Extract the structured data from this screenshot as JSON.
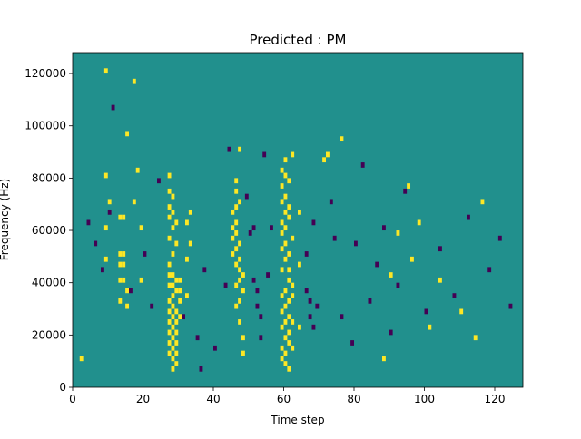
{
  "chart_data": {
    "type": "heatmap",
    "title": "Predicted : PM",
    "xlabel": "Time step",
    "ylabel": "Frequency (Hz)",
    "xlim": [
      0,
      128
    ],
    "ylim": [
      0,
      128000
    ],
    "x_ticks": [
      0,
      20,
      40,
      60,
      80,
      100,
      120
    ],
    "x_tick_labels": [
      "0",
      "20",
      "40",
      "60",
      "80",
      "100",
      "120"
    ],
    "y_ticks": [
      0,
      20000,
      40000,
      60000,
      80000,
      100000,
      120000
    ],
    "y_tick_labels": [
      "0",
      "20000",
      "40000",
      "60000",
      "80000",
      "100000",
      "120000"
    ],
    "grid": false,
    "legend": "none",
    "colormap": "viridis",
    "colors": {
      "background": "#21908d",
      "high": "#fde725",
      "low": "#440154"
    },
    "value_levels": {
      "background": 0,
      "high": 1,
      "low": -1
    },
    "cell_size": {
      "time_steps": 1,
      "frequency_hz": 2000
    },
    "high_cells": [
      [
        2,
        10
      ],
      [
        9,
        120
      ],
      [
        9,
        80
      ],
      [
        9,
        60
      ],
      [
        9,
        48
      ],
      [
        10,
        70
      ],
      [
        13,
        32
      ],
      [
        13,
        40
      ],
      [
        13,
        46
      ],
      [
        13,
        50
      ],
      [
        13,
        64
      ],
      [
        14,
        40
      ],
      [
        14,
        46
      ],
      [
        14,
        50
      ],
      [
        14,
        64
      ],
      [
        15,
        30
      ],
      [
        15,
        36
      ],
      [
        15,
        96
      ],
      [
        17,
        70
      ],
      [
        17,
        116
      ],
      [
        18,
        82
      ],
      [
        19,
        40
      ],
      [
        19,
        60
      ],
      [
        27,
        12
      ],
      [
        27,
        16
      ],
      [
        27,
        20
      ],
      [
        27,
        24
      ],
      [
        27,
        28
      ],
      [
        27,
        32
      ],
      [
        27,
        38
      ],
      [
        27,
        42
      ],
      [
        27,
        46
      ],
      [
        27,
        56
      ],
      [
        27,
        64
      ],
      [
        27,
        68
      ],
      [
        27,
        74
      ],
      [
        27,
        80
      ],
      [
        28,
        6
      ],
      [
        28,
        10
      ],
      [
        28,
        14
      ],
      [
        28,
        18
      ],
      [
        28,
        22
      ],
      [
        28,
        26
      ],
      [
        28,
        30
      ],
      [
        28,
        34
      ],
      [
        28,
        38
      ],
      [
        28,
        42
      ],
      [
        28,
        50
      ],
      [
        28,
        60
      ],
      [
        28,
        66
      ],
      [
        28,
        72
      ],
      [
        29,
        8
      ],
      [
        29,
        12
      ],
      [
        29,
        16
      ],
      [
        29,
        20
      ],
      [
        29,
        24
      ],
      [
        29,
        28
      ],
      [
        29,
        36
      ],
      [
        29,
        40
      ],
      [
        29,
        54
      ],
      [
        29,
        62
      ],
      [
        30,
        26
      ],
      [
        30,
        32
      ],
      [
        30,
        36
      ],
      [
        30,
        40
      ],
      [
        32,
        34
      ],
      [
        32,
        48
      ],
      [
        32,
        62
      ],
      [
        33,
        54
      ],
      [
        33,
        66
      ],
      [
        45,
        50
      ],
      [
        45,
        56
      ],
      [
        45,
        60
      ],
      [
        45,
        66
      ],
      [
        46,
        30
      ],
      [
        46,
        38
      ],
      [
        46,
        46
      ],
      [
        46,
        52
      ],
      [
        46,
        58
      ],
      [
        46,
        62
      ],
      [
        46,
        68
      ],
      [
        46,
        74
      ],
      [
        46,
        78
      ],
      [
        47,
        24
      ],
      [
        47,
        32
      ],
      [
        47,
        40
      ],
      [
        47,
        44
      ],
      [
        47,
        48
      ],
      [
        47,
        54
      ],
      [
        47,
        70
      ],
      [
        47,
        90
      ],
      [
        48,
        12
      ],
      [
        48,
        18
      ],
      [
        48,
        36
      ],
      [
        48,
        42
      ],
      [
        59,
        10
      ],
      [
        59,
        14
      ],
      [
        59,
        22
      ],
      [
        59,
        28
      ],
      [
        59,
        34
      ],
      [
        59,
        44
      ],
      [
        59,
        52
      ],
      [
        59,
        58
      ],
      [
        59,
        62
      ],
      [
        59,
        70
      ],
      [
        59,
        76
      ],
      [
        59,
        82
      ],
      [
        60,
        8
      ],
      [
        60,
        12
      ],
      [
        60,
        18
      ],
      [
        60,
        24
      ],
      [
        60,
        30
      ],
      [
        60,
        36
      ],
      [
        60,
        48
      ],
      [
        60,
        54
      ],
      [
        60,
        60
      ],
      [
        60,
        66
      ],
      [
        60,
        72
      ],
      [
        60,
        80
      ],
      [
        60,
        86
      ],
      [
        61,
        6
      ],
      [
        61,
        16
      ],
      [
        61,
        20
      ],
      [
        61,
        26
      ],
      [
        61,
        32
      ],
      [
        61,
        40
      ],
      [
        61,
        44
      ],
      [
        61,
        50
      ],
      [
        61,
        64
      ],
      [
        61,
        68
      ],
      [
        61,
        78
      ],
      [
        62,
        14
      ],
      [
        62,
        24
      ],
      [
        62,
        34
      ],
      [
        62,
        38
      ],
      [
        62,
        56
      ],
      [
        62,
        88
      ],
      [
        64,
        22
      ],
      [
        64,
        46
      ],
      [
        64,
        66
      ],
      [
        71,
        86
      ],
      [
        72,
        88
      ],
      [
        76,
        94
      ],
      [
        88,
        10
      ],
      [
        90,
        42
      ],
      [
        92,
        58
      ],
      [
        95,
        76
      ],
      [
        96,
        48
      ],
      [
        98,
        62
      ],
      [
        101,
        22
      ],
      [
        104,
        40
      ],
      [
        110,
        28
      ],
      [
        114,
        18
      ],
      [
        116,
        70
      ]
    ],
    "low_cells": [
      [
        4,
        62
      ],
      [
        6,
        54
      ],
      [
        8,
        44
      ],
      [
        10,
        66
      ],
      [
        11,
        106
      ],
      [
        16,
        36
      ],
      [
        20,
        50
      ],
      [
        22,
        30
      ],
      [
        24,
        78
      ],
      [
        31,
        26
      ],
      [
        35,
        18
      ],
      [
        36,
        6
      ],
      [
        37,
        44
      ],
      [
        40,
        14
      ],
      [
        43,
        38
      ],
      [
        44,
        90
      ],
      [
        49,
        72
      ],
      [
        50,
        58
      ],
      [
        51,
        60
      ],
      [
        51,
        40
      ],
      [
        52,
        36
      ],
      [
        52,
        30
      ],
      [
        53,
        26
      ],
      [
        53,
        18
      ],
      [
        54,
        88
      ],
      [
        55,
        42
      ],
      [
        56,
        60
      ],
      [
        66,
        36
      ],
      [
        66,
        50
      ],
      [
        67,
        32
      ],
      [
        67,
        26
      ],
      [
        68,
        22
      ],
      [
        68,
        62
      ],
      [
        69,
        30
      ],
      [
        73,
        70
      ],
      [
        74,
        56
      ],
      [
        76,
        26
      ],
      [
        79,
        16
      ],
      [
        80,
        54
      ],
      [
        82,
        84
      ],
      [
        84,
        32
      ],
      [
        86,
        46
      ],
      [
        88,
        60
      ],
      [
        90,
        20
      ],
      [
        92,
        38
      ],
      [
        94,
        74
      ],
      [
        100,
        28
      ],
      [
        104,
        52
      ],
      [
        108,
        34
      ],
      [
        112,
        64
      ],
      [
        118,
        44
      ],
      [
        121,
        56
      ],
      [
        124,
        30
      ]
    ]
  }
}
